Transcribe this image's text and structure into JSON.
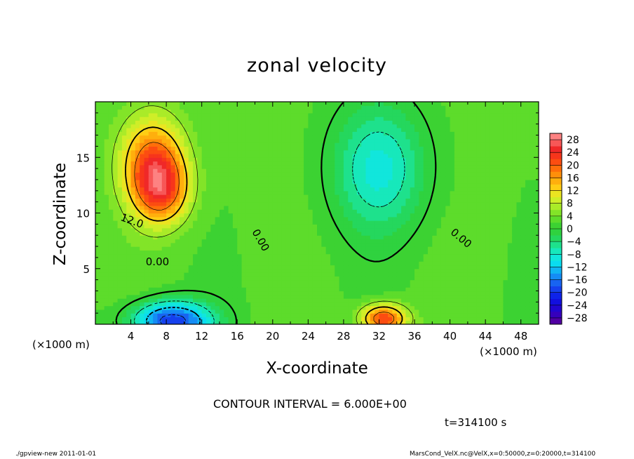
{
  "app": {
    "footer_left": "./gpview-new  2011-01-01",
    "footer_right": "MarsCond_VelX.nc@VelX,x=0:50000,z=0:20000,t=314100"
  },
  "chart_data": {
    "type": "heatmap",
    "title": "zonal velocity",
    "xlabel": "X-coordinate",
    "ylabel": "Z-coordinate",
    "x_unit_label": "(×1000 m)",
    "x_unit_label_right": "(×1000 m)",
    "xlim": [
      0,
      50
    ],
    "ylim": [
      0,
      20
    ],
    "x_ticks": [
      4,
      8,
      12,
      16,
      20,
      24,
      28,
      32,
      36,
      40,
      44,
      48
    ],
    "y_ticks": [
      5,
      10,
      15
    ],
    "colorbar_ticks": [
      28,
      24,
      20,
      16,
      12,
      8,
      4,
      0,
      -4,
      -8,
      -12,
      -16,
      -20,
      -24,
      -28
    ],
    "colorbar_levels": [
      -30,
      -28,
      -26,
      -24,
      -22,
      -20,
      -18,
      -16,
      -14,
      -12,
      -10,
      -8,
      -6,
      -4,
      -2,
      0,
      2,
      4,
      6,
      8,
      10,
      12,
      14,
      16,
      18,
      20,
      22,
      24,
      26,
      28,
      30
    ],
    "contour_labels": [
      {
        "text": "12.0",
        "x": 4,
        "z": 9.0
      },
      {
        "text": "0.00",
        "x": 7,
        "z": 5.3
      },
      {
        "text": "0.00",
        "x": 18.3,
        "z": 7.4
      },
      {
        "text": "0.00",
        "x": 41.0,
        "z": 7.5
      }
    ],
    "contour_interval_text": "CONTOUR INTERVAL = 6.000E+00",
    "time_text": "t=314100 s",
    "features": [
      {
        "kind": "max",
        "x": 6.5,
        "z": 14.5,
        "value": 17,
        "sx": 3.5,
        "sz": 4.0
      },
      {
        "kind": "max",
        "x": 7.5,
        "z": 12.0,
        "value": 14,
        "sx": 3.0,
        "sz": 3.0
      },
      {
        "kind": "min",
        "x": 8.5,
        "z": 0.3,
        "value": -23,
        "sx": 4.5,
        "sz": 1.8
      },
      {
        "kind": "min",
        "x": 32.0,
        "z": 14.0,
        "value": -11,
        "sx": 5.5,
        "sz": 6.0
      },
      {
        "kind": "max",
        "x": 32.5,
        "z": 0.5,
        "value": 21,
        "sx": 2.5,
        "sz": 1.3
      }
    ]
  }
}
